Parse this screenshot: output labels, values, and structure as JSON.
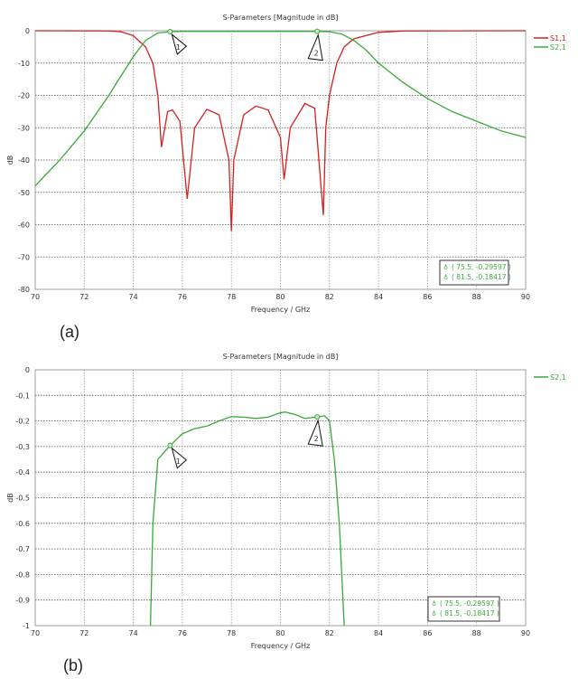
{
  "panel_labels": [
    "(a)",
    "(b)"
  ],
  "chart_data": [
    {
      "type": "line",
      "title": "S-Parameters [Magnitude in dB]",
      "xlabel": "Frequency / GHz",
      "ylabel": "dB",
      "xlim": [
        70,
        90
      ],
      "ylim": [
        -80,
        0
      ],
      "xticks": [
        70,
        72,
        74,
        76,
        78,
        80,
        82,
        84,
        86,
        88,
        90
      ],
      "yticks": [
        0,
        -10,
        -20,
        -30,
        -40,
        -50,
        -60,
        -70,
        -80
      ],
      "grid": true,
      "legend_position": "right",
      "series": [
        {
          "name": "S1,1",
          "color": "#d42020",
          "x": [
            70,
            73,
            73.5,
            74,
            74.5,
            74.8,
            75,
            75.15,
            75.4,
            75.6,
            75.9,
            76.2,
            76.5,
            77,
            77.5,
            77.9,
            78,
            78.1,
            78.5,
            79,
            79.5,
            80,
            80.15,
            80.4,
            81,
            81.4,
            81.75,
            81.85,
            82,
            82.3,
            82.6,
            83,
            84,
            85,
            90
          ],
          "y": [
            0,
            -0.05,
            -0.3,
            -1.5,
            -5,
            -10,
            -20,
            -36,
            -25,
            -24.5,
            -28,
            -52,
            -30,
            -24.3,
            -26,
            -40,
            -62,
            -40,
            -26,
            -23.3,
            -24.5,
            -33,
            -46,
            -30,
            -22.5,
            -24,
            -57,
            -30,
            -20,
            -10,
            -5,
            -2.5,
            -0.5,
            -0.05,
            0
          ]
        },
        {
          "name": "S2,1",
          "color": "#3aa83a",
          "x": [
            70,
            71,
            72,
            73,
            73.5,
            74,
            74.5,
            75,
            75.5,
            76,
            81.5,
            82,
            82.5,
            83,
            83.5,
            84,
            85,
            86,
            87,
            88,
            89,
            90
          ],
          "y": [
            -48,
            -40,
            -31,
            -20,
            -14,
            -8,
            -3,
            -0.7,
            -0.3,
            -0.2,
            -0.2,
            -0.3,
            -1,
            -3,
            -6,
            -10,
            -16,
            -21,
            -25,
            -28,
            -31,
            -33
          ]
        }
      ],
      "markers": [
        {
          "label": "1",
          "x": 75.5,
          "y": -0.29597,
          "readout": "( 75.5, -0.29597 )"
        },
        {
          "label": "2",
          "x": 81.5,
          "y": -0.18417,
          "readout": "( 81.5, -0.18417 )"
        }
      ]
    },
    {
      "type": "line",
      "title": "S-Parameters [Magnitude in dB]",
      "xlabel": "Frequency / GHz",
      "ylabel": "dB",
      "xlim": [
        70,
        90
      ],
      "ylim": [
        -1,
        0
      ],
      "xticks": [
        70,
        72,
        74,
        76,
        78,
        80,
        82,
        84,
        86,
        88,
        90
      ],
      "yticks": [
        0,
        -0.1,
        -0.2,
        -0.3,
        -0.4,
        -0.5,
        -0.6,
        -0.7,
        -0.8,
        -0.9,
        -1
      ],
      "grid": true,
      "legend_position": "right",
      "series": [
        {
          "name": "S2,1",
          "color": "#3aa83a",
          "x": [
            74.7,
            74.8,
            75,
            75.5,
            76,
            76.5,
            77,
            77.5,
            78,
            78.5,
            79,
            79.5,
            80,
            80.2,
            80.6,
            81,
            81.5,
            81.8,
            82,
            82.2,
            82.4,
            82.6
          ],
          "y": [
            -1,
            -0.6,
            -0.35,
            -0.296,
            -0.25,
            -0.23,
            -0.22,
            -0.2,
            -0.183,
            -0.185,
            -0.19,
            -0.185,
            -0.168,
            -0.165,
            -0.175,
            -0.19,
            -0.184,
            -0.18,
            -0.2,
            -0.35,
            -0.6,
            -1
          ]
        }
      ],
      "markers": [
        {
          "label": "1",
          "x": 75.5,
          "y": -0.29597,
          "readout": "( 75.5, -0.29597 )"
        },
        {
          "label": "2",
          "x": 81.5,
          "y": -0.18417,
          "readout": "( 81.5, -0.18417 )"
        }
      ]
    }
  ]
}
